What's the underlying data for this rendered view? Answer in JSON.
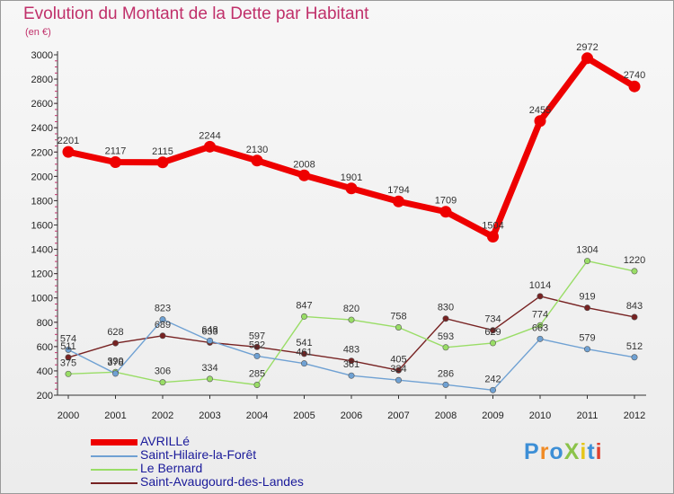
{
  "title": "Evolution du Montant de la Dette par Habitant",
  "unit": "(en €)",
  "logo": {
    "text": "ProXiti",
    "colors": [
      "#3d8fd6",
      "#f08a24",
      "#3d8fd6",
      "#8bc34a",
      "#e6c619",
      "#3d8fd6",
      "#e0402e"
    ]
  },
  "chart_data": {
    "type": "line",
    "title": "Evolution du Montant de la Dette par Habitant",
    "ylabel": "(en €)",
    "xlabel": "",
    "x": [
      "2000",
      "2001",
      "2002",
      "2003",
      "2004",
      "2005",
      "2006",
      "2007",
      "2008",
      "2009",
      "2010",
      "2011",
      "2012"
    ],
    "ylim": [
      200,
      3000
    ],
    "yticks": [
      "200",
      "400",
      "600",
      "800",
      "1000",
      "1200",
      "1400",
      "1600",
      "1800",
      "2000",
      "2200",
      "2400",
      "2600",
      "2800",
      "3000"
    ],
    "grid": false,
    "legend": "bottom-left",
    "series": [
      {
        "name": "AVRILLé",
        "color": "#ee0000",
        "values": [
          2201,
          2117,
          2115,
          2244,
          2130,
          2008,
          1901,
          1794,
          1709,
          1504,
          2455,
          2972,
          2740
        ]
      },
      {
        "name": "Saint-Hilaire-la-Forêt",
        "color": "#6fa1d3",
        "values": [
          574,
          378,
          823,
          648,
          522,
          461,
          361,
          324,
          286,
          242,
          663,
          579,
          512
        ]
      },
      {
        "name": "Le Bernard",
        "color": "#99dd66",
        "values": [
          375,
          390,
          306,
          334,
          285,
          847,
          820,
          758,
          593,
          629,
          774,
          1304,
          1220
        ]
      },
      {
        "name": "Saint-Avaugourd-des-Landes",
        "color": "#772222",
        "values": [
          511,
          628,
          689,
          633,
          597,
          541,
          483,
          405,
          830,
          734,
          1014,
          919,
          843
        ]
      }
    ]
  }
}
